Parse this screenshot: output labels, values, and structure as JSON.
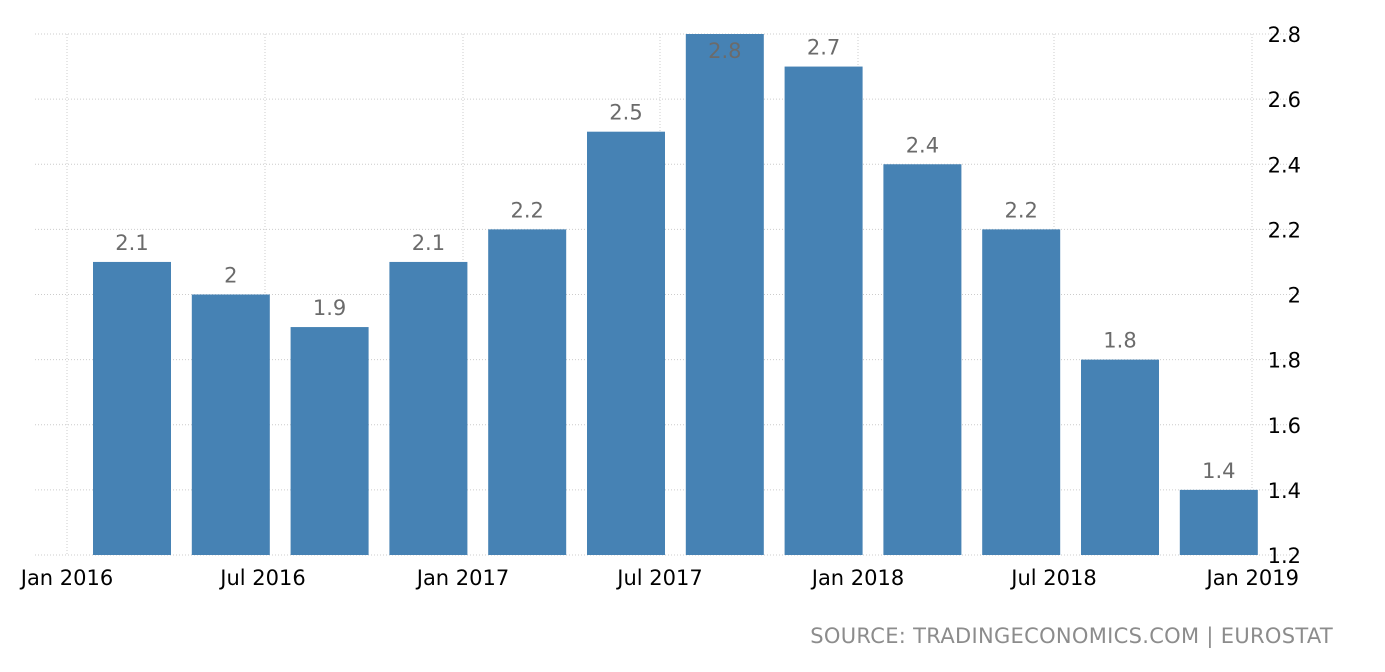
{
  "chart_data": {
    "type": "bar",
    "categories": [
      "Q1 2016",
      "Q2 2016",
      "Q3 2016",
      "Q4 2016",
      "Q1 2017",
      "Q2 2017",
      "Q3 2017",
      "Q4 2017",
      "Q1 2018",
      "Q2 2018",
      "Q3 2018",
      "Q4 2018"
    ],
    "values": [
      2.1,
      2.0,
      1.9,
      2.1,
      2.2,
      2.5,
      2.8,
      2.7,
      2.4,
      2.2,
      1.8,
      1.4
    ],
    "value_labels": [
      "2.1",
      "2",
      "1.9",
      "2.1",
      "2.2",
      "2.5",
      "2.8",
      "2.7",
      "2.4",
      "2.2",
      "1.8",
      "1.4"
    ],
    "x_tick_labels": [
      "Jan 2016",
      "Jul 2016",
      "Jan 2017",
      "Jul 2017",
      "Jan 2018",
      "Jul 2018",
      "Jan 2019"
    ],
    "y_ticks": [
      1.2,
      1.4,
      1.6,
      1.8,
      2.0,
      2.2,
      2.4,
      2.6,
      2.8
    ],
    "y_tick_labels": [
      "1.2",
      "1.4",
      "1.6",
      "1.8",
      "2",
      "2.2",
      "2.4",
      "2.6",
      "2.8"
    ],
    "ylim": [
      1.2,
      2.8
    ],
    "title": "",
    "xlabel": "",
    "ylabel": "",
    "y_axis_side": "right",
    "grid": true,
    "bar_color": "#4682b4",
    "label_color": "#6b6b6b"
  },
  "source_text": "SOURCE: TRADINGECONOMICS.COM | EUROSTAT"
}
